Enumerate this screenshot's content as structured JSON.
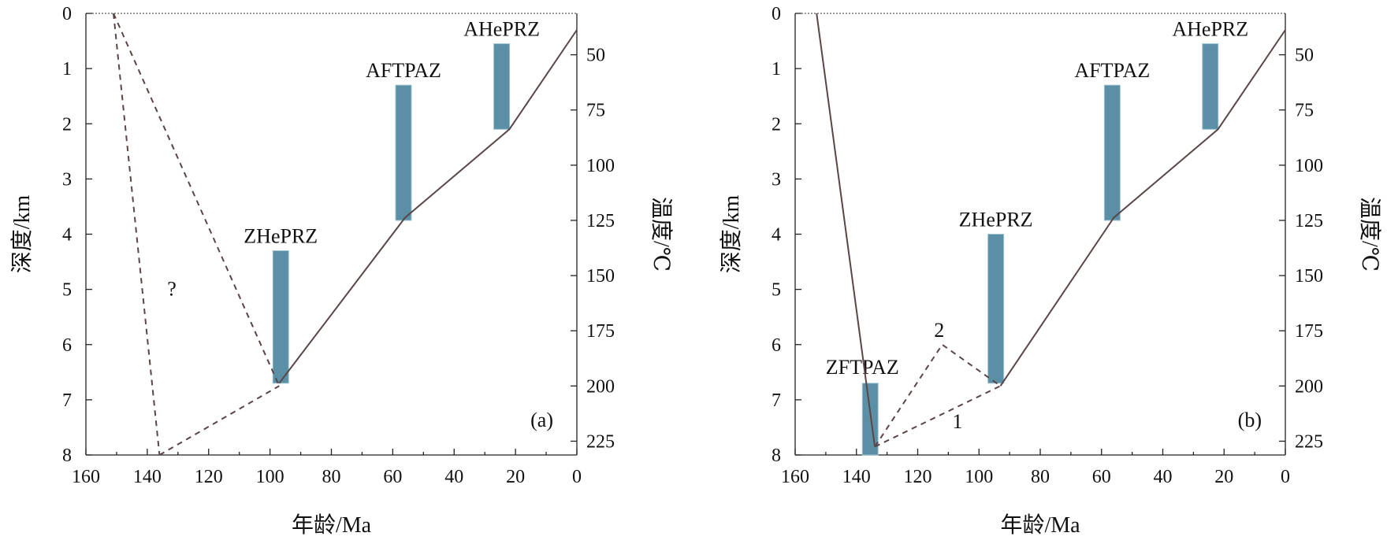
{
  "chart_data": [
    {
      "type": "line",
      "panel_label": "(a)",
      "xlabel": "年龄/Ma",
      "ylabel_left": "深度/km",
      "ylabel_right": "温度/℃",
      "xlim": [
        160,
        0
      ],
      "ylim": [
        8,
        0
      ],
      "x_ticks": [
        "160",
        "140",
        "120",
        "100",
        "80",
        "60",
        "40",
        "20",
        "0"
      ],
      "y_ticks": [
        "0",
        "1",
        "2",
        "3",
        "4",
        "5",
        "6",
        "7",
        "8"
      ],
      "right_ticks": [
        "50",
        "75",
        "100",
        "125",
        "150",
        "175",
        "200",
        "225"
      ],
      "zones": [
        {
          "name": "AHePRZ",
          "x": 24.5,
          "depth_top": 0.55,
          "depth_bottom": 2.1
        },
        {
          "name": "AFTPAZ",
          "x": 56.5,
          "depth_top": 1.3,
          "depth_bottom": 3.75
        },
        {
          "name": "ZHePRZ",
          "x": 96.5,
          "depth_top": 4.3,
          "depth_bottom": 6.7
        }
      ],
      "series": [
        {
          "style": "solid",
          "points": [
            [
              0,
              0.3
            ],
            [
              22,
              2.1
            ],
            [
              56,
              3.7
            ],
            [
              97,
              6.7
            ]
          ]
        },
        {
          "style": "dashed",
          "points": [
            [
              151,
              0
            ],
            [
              97,
              6.75
            ]
          ]
        },
        {
          "style": "dashed",
          "points": [
            [
              151,
              0
            ],
            [
              136,
              8
            ]
          ]
        },
        {
          "style": "dashed",
          "points": [
            [
              136,
              8
            ],
            [
              97,
              6.75
            ]
          ]
        }
      ],
      "annotations": [
        {
          "text": "?",
          "x": 132,
          "depth": 5.0
        }
      ]
    },
    {
      "type": "line",
      "panel_label": "(b)",
      "xlabel": "年龄/Ma",
      "ylabel_left": "深度/km",
      "ylabel_right": "温度/℃",
      "xlim": [
        160,
        0
      ],
      "ylim": [
        8,
        0
      ],
      "x_ticks": [
        "160",
        "140",
        "120",
        "100",
        "80",
        "60",
        "40",
        "20",
        "0"
      ],
      "y_ticks": [
        "0",
        "1",
        "2",
        "3",
        "4",
        "5",
        "6",
        "7",
        "8"
      ],
      "right_ticks": [
        "50",
        "75",
        "100",
        "125",
        "150",
        "175",
        "200",
        "225"
      ],
      "zones": [
        {
          "name": "AHePRZ",
          "x": 24.5,
          "depth_top": 0.55,
          "depth_bottom": 2.1
        },
        {
          "name": "AFTPAZ",
          "x": 56.5,
          "depth_top": 1.3,
          "depth_bottom": 3.75
        },
        {
          "name": "ZHePRZ",
          "x": 94.5,
          "depth_top": 4.0,
          "depth_bottom": 6.7
        },
        {
          "name": "ZFTPAZ",
          "x": 135.5,
          "depth_top": 6.7,
          "depth_bottom": 8.0
        }
      ],
      "series": [
        {
          "style": "solid",
          "points": [
            [
              0,
              0.3
            ],
            [
              22,
              2.1
            ],
            [
              56,
              3.7
            ],
            [
              93,
              6.75
            ]
          ]
        },
        {
          "style": "solid",
          "points": [
            [
              153,
              0
            ],
            [
              134,
              7.85
            ]
          ]
        },
        {
          "style": "dashed",
          "points": [
            [
              134,
              7.85
            ],
            [
              112,
              6.0
            ],
            [
              93,
              6.75
            ]
          ]
        },
        {
          "style": "dashed",
          "points": [
            [
              134,
              7.85
            ],
            [
              93,
              6.75
            ]
          ]
        }
      ],
      "annotations": [
        {
          "text": "2",
          "x": 113,
          "depth": 5.75
        },
        {
          "text": "1",
          "x": 107,
          "depth": 7.4
        }
      ]
    }
  ]
}
